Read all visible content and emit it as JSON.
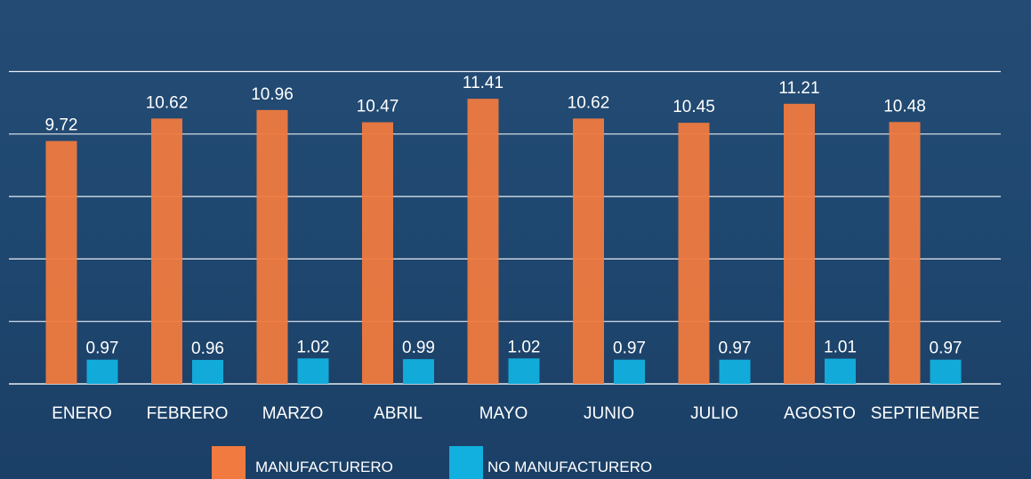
{
  "chart_data": {
    "type": "bar",
    "categories": [
      "ENERO",
      "FEBRERO",
      "MARZO",
      "ABRIL",
      "MAYO",
      "JUNIO",
      "JULIO",
      "AGOSTO",
      "SEPTIEMBRE"
    ],
    "series": [
      {
        "name": "MANUFACTURERO",
        "values": [
          9.72,
          10.62,
          10.96,
          10.47,
          11.41,
          10.62,
          10.45,
          11.21,
          10.48
        ],
        "color": "#f07a3f"
      },
      {
        "name": "NO MANUFACTURERO",
        "values": [
          0.97,
          0.96,
          1.02,
          0.99,
          1.02,
          0.97,
          0.97,
          1.01,
          0.97
        ],
        "color": "#12b0df"
      }
    ],
    "ylim": [
      0,
      12.5
    ],
    "grid": true,
    "legend": "bottom-center",
    "data_labels": true,
    "colors": {
      "background": "#1f4870",
      "text": "#ffffff",
      "gridline": "#ffffff"
    }
  }
}
